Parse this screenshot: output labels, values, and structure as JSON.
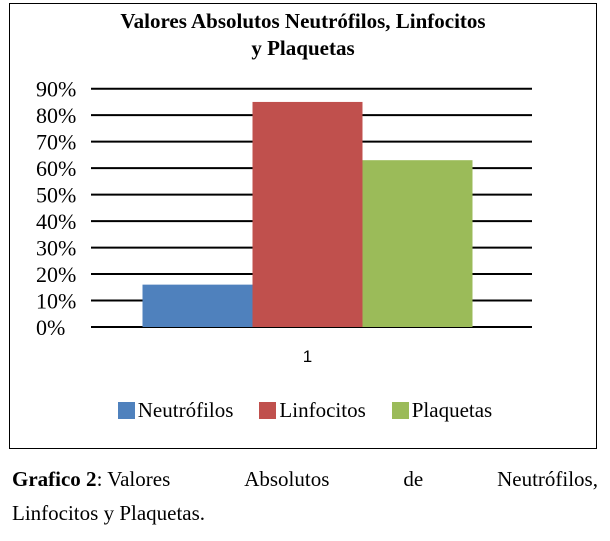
{
  "chart_data": {
    "type": "bar",
    "title": "Valores Absolutos Neutrófilos,  Linfocitos y Plaquetas",
    "title_lines": [
      "Valores Absolutos Neutrófilos,  Linfocitos",
      "y Plaquetas"
    ],
    "categories": [
      "1"
    ],
    "series": [
      {
        "name": "Neutrófilos",
        "values": [
          16
        ],
        "color": "#4F81BD"
      },
      {
        "name": "Linfocitos",
        "values": [
          85
        ],
        "color": "#C0504D"
      },
      {
        "name": "Plaquetas",
        "values": [
          63
        ],
        "color": "#9BBB59"
      }
    ],
    "ylim": [
      0,
      90
    ],
    "yticks": [
      "0%",
      "10%",
      "20%",
      "30%",
      "40%",
      "50%",
      "60%",
      "70%",
      "80%",
      "90%"
    ],
    "grid": true,
    "legend": "bottom",
    "xlabel": "",
    "ylabel": ""
  },
  "caption": {
    "label": "Grafico 2",
    "words": [
      ": Valores",
      "Absolutos",
      "de",
      "Neutrófilos,"
    ],
    "line2": "Linfocitos y Plaquetas."
  }
}
